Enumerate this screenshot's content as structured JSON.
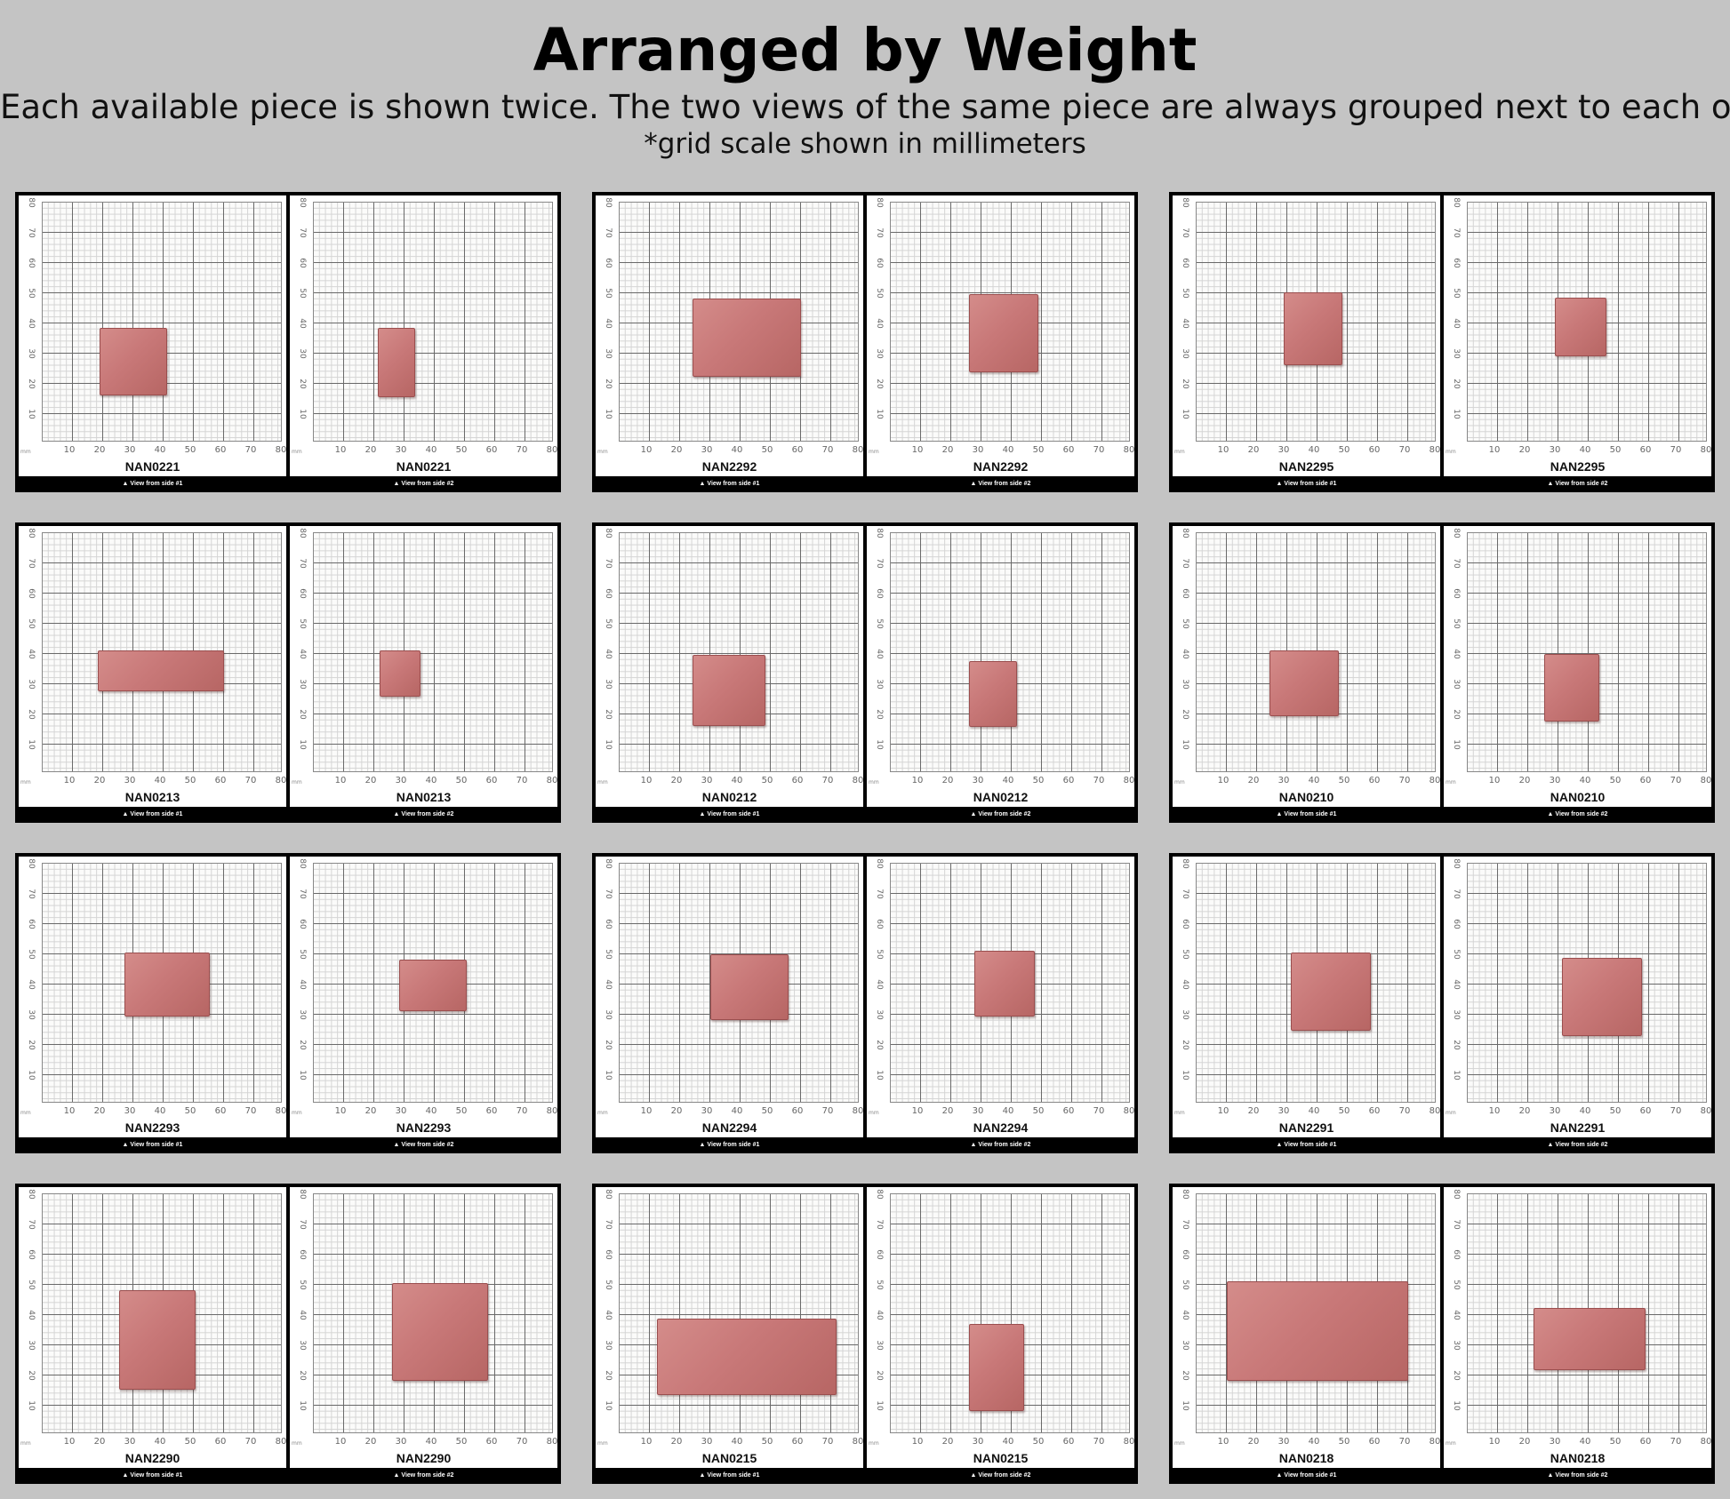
{
  "title": "Arranged by Weight",
  "subtitle": "Each available piece is shown twice. The two views of the same piece are always grouped next to each other.",
  "note": "*grid scale shown in millimeters",
  "grid": {
    "unit": "mm",
    "x_ticks": [
      "10",
      "20",
      "30",
      "40",
      "50",
      "60",
      "70",
      "80"
    ],
    "y_ticks": [
      "80",
      "70",
      "60",
      "50",
      "40",
      "30",
      "20",
      "10"
    ]
  },
  "view_labels": {
    "side1": "▲ View from side #1",
    "side2": "▲ View from side #2"
  },
  "stone_color": "#c87878",
  "pieces": [
    {
      "id": "NAN0221"
    },
    {
      "id": "NAN2292"
    },
    {
      "id": "NAN2295"
    },
    {
      "id": "NAN0213"
    },
    {
      "id": "NAN0212"
    },
    {
      "id": "NAN0210"
    },
    {
      "id": "NAN2293"
    },
    {
      "id": "NAN2294"
    },
    {
      "id": "NAN2291"
    },
    {
      "id": "NAN2290"
    },
    {
      "id": "NAN0215"
    },
    {
      "id": "NAN0218"
    }
  ]
}
